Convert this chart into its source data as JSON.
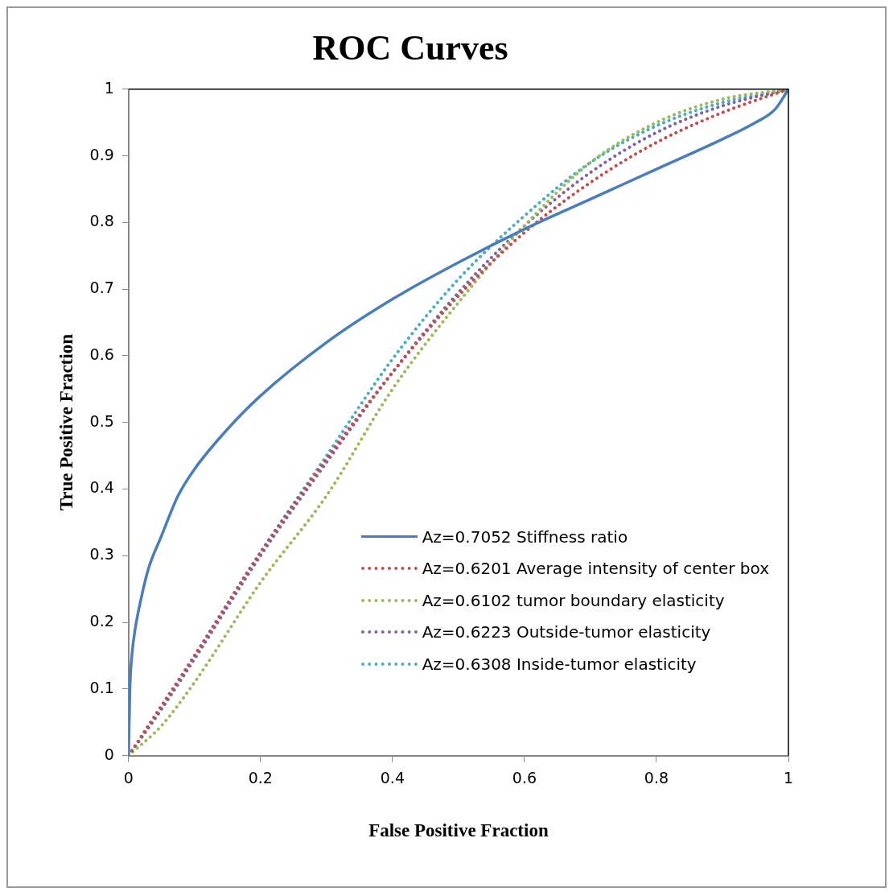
{
  "chart_data": {
    "type": "line",
    "title": "ROC Curves",
    "xlabel": "False Positive Fraction",
    "ylabel": "True Positive Fraction",
    "xlim": [
      0,
      1
    ],
    "ylim": [
      0,
      1
    ],
    "xticks": [
      0,
      0.2,
      0.4,
      0.6,
      0.8,
      1
    ],
    "yticks": [
      0,
      0.1,
      0.2,
      0.3,
      0.4,
      0.5,
      0.6,
      0.7,
      0.8,
      0.9,
      1
    ],
    "grid": false,
    "legend": "bottom right",
    "marker": "none",
    "series": [
      {
        "name": "Az=0.7052 Stiffness ratio",
        "color": "#4a7ebb",
        "line_style": "solid",
        "x": [
          0,
          0.002,
          0.005,
          0.01,
          0.02,
          0.03,
          0.05,
          0.075,
          0.1,
          0.15,
          0.2,
          0.3,
          0.4,
          0.5,
          0.6,
          0.7,
          0.8,
          0.9,
          0.95,
          0.98,
          1
        ],
        "values": [
          0,
          0.1,
          0.15,
          0.19,
          0.24,
          0.28,
          0.33,
          0.39,
          0.43,
          0.49,
          0.54,
          0.62,
          0.685,
          0.74,
          0.79,
          0.835,
          0.88,
          0.925,
          0.95,
          0.97,
          1
        ]
      },
      {
        "name": "Az=0.6201 Average intensity of center box",
        "color": "#c0504d",
        "line_style": "dotted",
        "x": [
          0,
          0.05,
          0.1,
          0.2,
          0.3,
          0.4,
          0.5,
          0.6,
          0.7,
          0.8,
          0.9,
          1
        ],
        "values": [
          0,
          0.075,
          0.15,
          0.305,
          0.445,
          0.575,
          0.69,
          0.785,
          0.86,
          0.92,
          0.965,
          1
        ]
      },
      {
        "name": "Az=0.6102 tumor boundary elasticity",
        "color": "#9bbb59",
        "line_style": "dotted",
        "x": [
          0,
          0.05,
          0.1,
          0.2,
          0.3,
          0.4,
          0.5,
          0.6,
          0.7,
          0.8,
          0.9,
          1
        ],
        "values": [
          0,
          0.045,
          0.11,
          0.26,
          0.39,
          0.55,
          0.68,
          0.795,
          0.89,
          0.95,
          0.985,
          1
        ]
      },
      {
        "name": "Az=0.6223 Outside-tumor elasticity",
        "color": "#8064a2",
        "line_style": "dotted",
        "x": [
          0,
          0.05,
          0.1,
          0.2,
          0.3,
          0.4,
          0.5,
          0.6,
          0.7,
          0.8,
          0.9,
          1
        ],
        "values": [
          0,
          0.07,
          0.145,
          0.3,
          0.44,
          0.575,
          0.695,
          0.795,
          0.875,
          0.935,
          0.975,
          1
        ]
      },
      {
        "name": "Az=0.6308 Inside-tumor elasticity",
        "color": "#4bacc6",
        "line_style": "dotted",
        "x": [
          0,
          0.05,
          0.1,
          0.2,
          0.3,
          0.4,
          0.5,
          0.6,
          0.7,
          0.8,
          0.9,
          1
        ],
        "values": [
          0,
          0.07,
          0.15,
          0.305,
          0.45,
          0.595,
          0.715,
          0.81,
          0.89,
          0.945,
          0.98,
          1
        ]
      }
    ]
  }
}
